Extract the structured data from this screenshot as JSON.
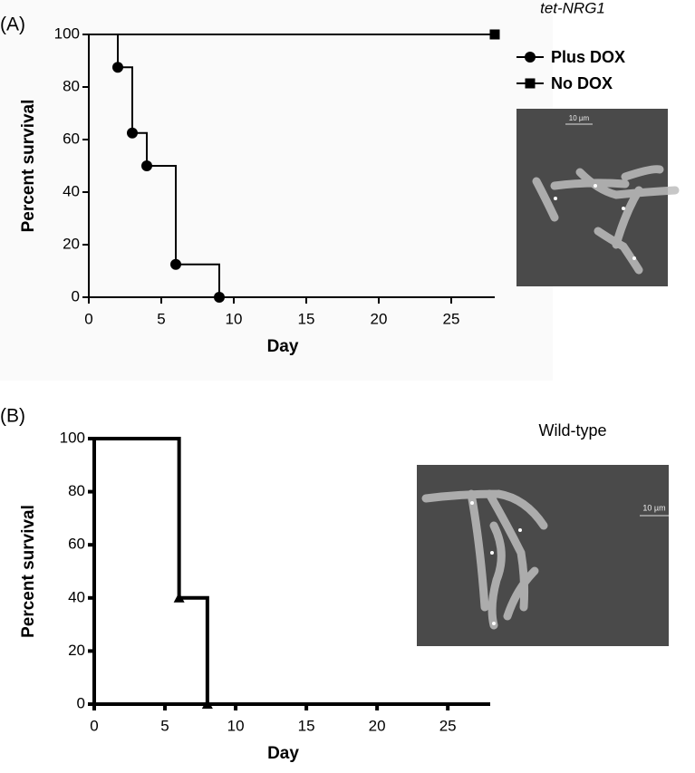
{
  "chart_data": [
    {
      "type": "line",
      "step": true,
      "panel_label": "(A)",
      "annotation": "tet-NRG1",
      "xlabel": "Day",
      "ylabel": "Percent survival",
      "xlim": [
        0,
        28
      ],
      "ylim": [
        0,
        100
      ],
      "xticks": [
        0,
        5,
        10,
        15,
        20,
        25
      ],
      "yticks": [
        0,
        20,
        40,
        60,
        80,
        100
      ],
      "legend": "upper right",
      "scale_label": "10 µm",
      "series": [
        {
          "name": "Plus DOX",
          "color": "#000000",
          "marker": "circle",
          "x": [
            0,
            2,
            3,
            4,
            6,
            9
          ],
          "values": [
            100,
            87.5,
            62.5,
            50,
            12.5,
            0
          ]
        },
        {
          "name": "No DOX",
          "color": "#000000",
          "marker": "square",
          "x": [
            0,
            28
          ],
          "values": [
            100,
            100
          ]
        }
      ]
    },
    {
      "type": "line",
      "step": true,
      "panel_label": "(B)",
      "annotation": "Wild-type",
      "xlabel": "Day",
      "ylabel": "Percent survival",
      "xlim": [
        0,
        28
      ],
      "ylim": [
        0,
        100
      ],
      "xticks": [
        0,
        5,
        10,
        15,
        20,
        25
      ],
      "yticks": [
        0,
        20,
        40,
        60,
        80,
        100
      ],
      "scale_label": "10 µm",
      "series": [
        {
          "color": "#000000",
          "marker": "triangle",
          "x": [
            0,
            6,
            8
          ],
          "values": [
            100,
            40,
            0
          ]
        }
      ]
    }
  ]
}
